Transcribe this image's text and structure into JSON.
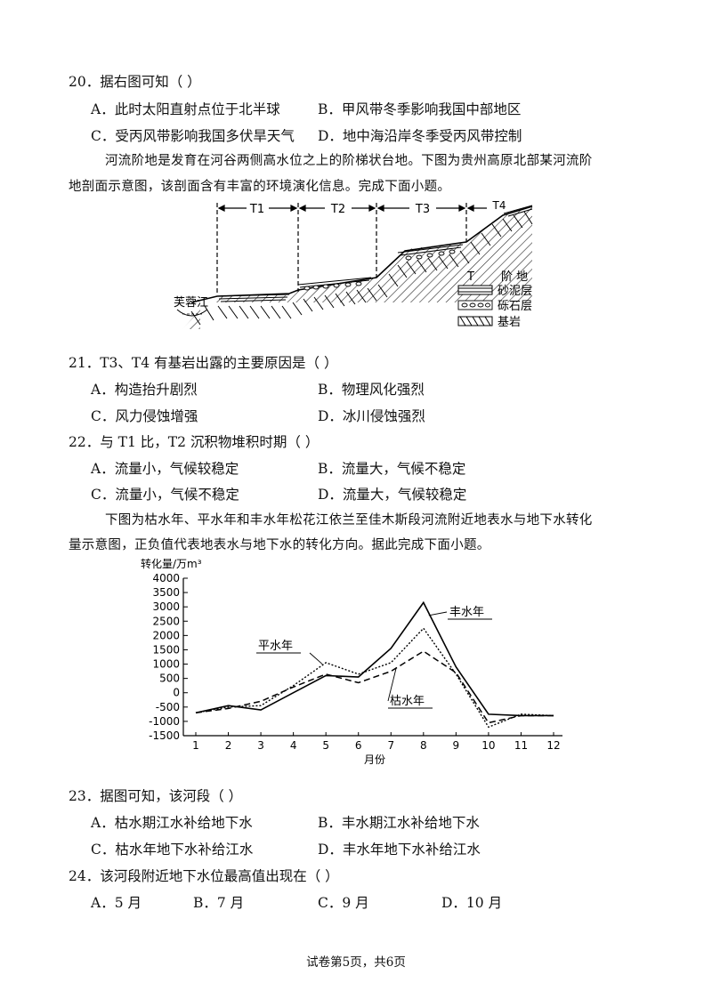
{
  "q20": {
    "stem": "20．据右图可知（    ）",
    "A": "A．此时太阳直射点位于北半球",
    "B": "B．甲风带冬季影响我国中部地区",
    "C": "C．受丙风带影响我国多伏旱天气",
    "D": "D．地中海沿岸冬季受丙风带控制"
  },
  "intro1": {
    "line1": "河流阶地是发育在河谷两侧高水位之上的阶梯状台地。下图为贵州高原北部某河流阶",
    "line2": "地剖面示意图，该剖面含有丰富的环境演化信息。完成下面小题。"
  },
  "diagram1": {
    "labels": [
      "T1",
      "T2",
      "T3",
      "T4"
    ],
    "river": "芙蓉江",
    "legend": [
      {
        "symbol": "T",
        "text": "阶   地"
      },
      {
        "symbol": "sand",
        "text": "砂泥层"
      },
      {
        "symbol": "gravel",
        "text": "砾石层"
      },
      {
        "symbol": "rock",
        "text": "基岩"
      }
    ]
  },
  "q21": {
    "stem": "21．T3、T4 有基岩出露的主要原因是（    ）",
    "A": "A．构造抬升剧烈",
    "B": "B．物理风化强烈",
    "C": "C．风力侵蚀增强",
    "D": "D．冰川侵蚀强烈"
  },
  "q22": {
    "stem": "22．与 T1 比，T2 沉积物堆积时期（    ）",
    "A": "A．流量小，气候较稳定",
    "B": "B．流量大，气候不稳定",
    "C": "C．流量小，气候不稳定",
    "D": "D．流量大，气候较稳定"
  },
  "intro2": {
    "line1": "下图为枯水年、平水年和丰水年松花江依兰至佳木斯段河流附近地表水与地下水转化",
    "line2": "量示意图，正负值代表地表水与地下水的转化方向。据此完成下面小题。"
  },
  "chart_data": {
    "type": "line",
    "ylabel": "转化量/万m³",
    "xlabel": "月份",
    "x": [
      1,
      2,
      3,
      4,
      5,
      6,
      7,
      8,
      9,
      10,
      11,
      12
    ],
    "ylim": [
      -1500,
      4000
    ],
    "yticks": [
      4000,
      3500,
      3000,
      2500,
      2000,
      1500,
      1000,
      500,
      0,
      -500,
      -1000,
      -1500
    ],
    "grid": false,
    "series": [
      {
        "name": "丰水年",
        "style": "solid",
        "values": [
          -700,
          -450,
          -600,
          0,
          600,
          550,
          1550,
          3150,
          900,
          -750,
          -800,
          -800
        ]
      },
      {
        "name": "平水年",
        "style": "dotted",
        "values": [
          -700,
          -500,
          -450,
          250,
          1050,
          650,
          1050,
          2250,
          650,
          -1200,
          -750,
          -800
        ]
      },
      {
        "name": "枯水年",
        "style": "dashed",
        "values": [
          -700,
          -550,
          -300,
          200,
          650,
          350,
          750,
          1450,
          700,
          -1050,
          -800,
          -800
        ]
      }
    ]
  },
  "q23": {
    "stem": "23．据图可知，该河段（    ）",
    "A": "A．枯水期江水补给地下水",
    "B": "B．丰水期江水补给地下水",
    "C": "C．枯水年地下水补给江水",
    "D": "D．丰水年地下水补给江水"
  },
  "q24": {
    "stem": "24．该河段附近地下水位最高值出现在（    ）",
    "A": "A．5 月",
    "B": "B．7 月",
    "C": "C．9 月",
    "D": "D．10 月"
  },
  "footer": "试卷第5页，共6页"
}
